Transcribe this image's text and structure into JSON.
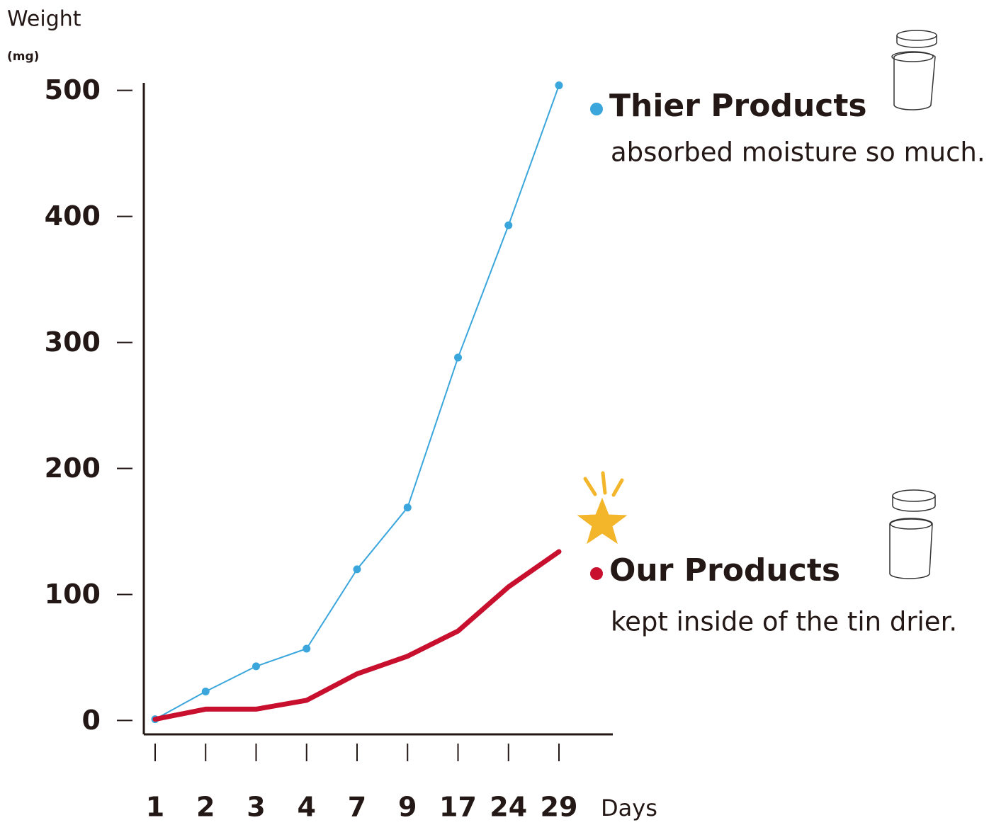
{
  "chart_data": {
    "type": "line",
    "y_label": "Weight",
    "y_unit": "(mg)",
    "x_label": "Days",
    "categories": [
      "1",
      "2",
      "3",
      "4",
      "7",
      "9",
      "17",
      "24",
      "29"
    ],
    "series": [
      {
        "name": "Thier Products",
        "color": "#3aa6dc",
        "values": [
          1,
          23,
          43,
          57,
          120,
          169,
          288,
          393,
          504
        ],
        "markers": true
      },
      {
        "name": "Our Products",
        "color": "#c8102e",
        "values": [
          1,
          9,
          9,
          16,
          37,
          51,
          71,
          106,
          134
        ],
        "markers": false
      }
    ],
    "annotations": [
      "absorbed moisture so much.",
      "kept inside of the tin drier."
    ],
    "ylim": [
      -11,
      506
    ],
    "yticks": [
      0,
      100,
      200,
      300,
      400,
      500
    ]
  }
}
